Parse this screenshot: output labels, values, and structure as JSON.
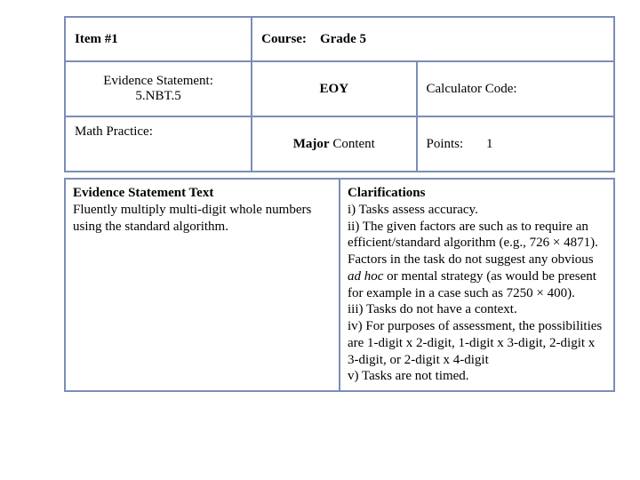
{
  "grid": {
    "itemLabel": "Item #1",
    "courseLabel": "Course:",
    "courseValue": "Grade 5",
    "evidenceLabel1": "Evidence Statement:",
    "evidenceLabel2": "5.NBT.5",
    "eoy": "EOY",
    "calcCodeLabel": "Calculator Code:",
    "mathPracticeLabel": "Math Practice:",
    "majorBold": "Major",
    "majorRest": " Content",
    "pointsLabel": "Points:",
    "pointsValue": "1"
  },
  "bottom": {
    "leftHeading": "Evidence Statement Text",
    "leftBody": "Fluently multiply multi-digit whole numbers using the standard algorithm.",
    "rightHeading": "Clarifications",
    "c1": "i) Tasks assess accuracy.",
    "c2a": "ii) The given factors are such as to require an efficient/standard algorithm (e.g., 726 × 4871). Factors in the task do not suggest any obvious ",
    "c2i": "ad hoc",
    "c2b": " or mental strategy (as would be present for example in a case such as 7250 × 400).",
    "c3": "iii) Tasks do not have a context.",
    "c4": "iv) For purposes of assessment, the possibilities are 1-digit x 2-digit, 1-digit x 3-digit, 2-digit x 3-digit, or 2-digit x 4-digit",
    "c5": "v) Tasks are not timed."
  },
  "style": {
    "borderColor": "#7b8db8",
    "textColor": "#000000",
    "background": "#ffffff",
    "fontFamily": "Georgia",
    "fontSize": 15
  }
}
